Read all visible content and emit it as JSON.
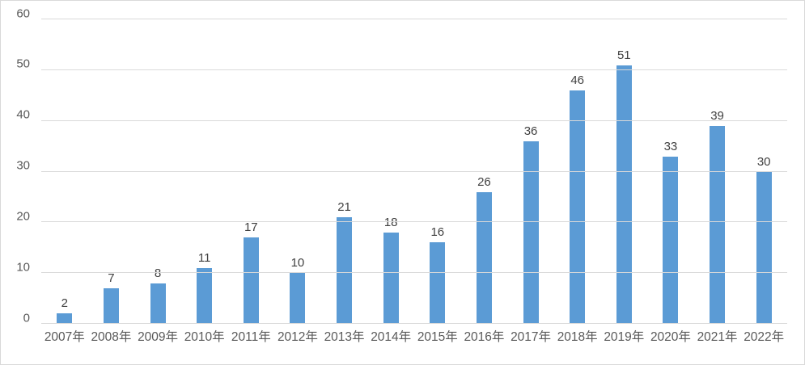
{
  "chart_data": {
    "type": "bar",
    "title": "",
    "xlabel": "",
    "ylabel": "",
    "categories": [
      "2007年",
      "2008年",
      "2009年",
      "2010年",
      "2011年",
      "2012年",
      "2013年",
      "2014年",
      "2015年",
      "2016年",
      "2017年",
      "2018年",
      "2019年",
      "2020年",
      "2021年",
      "2022年"
    ],
    "values": [
      2,
      7,
      8,
      11,
      17,
      10,
      21,
      18,
      16,
      26,
      36,
      46,
      51,
      33,
      39,
      30
    ],
    "ylim": [
      0,
      60
    ],
    "yticks": [
      0,
      10,
      20,
      30,
      40,
      50,
      60
    ],
    "grid": true,
    "legend_position": "none",
    "data_labels_shown": true,
    "colors": {
      "bar": "#5B9BD5",
      "gridline": "#D9D9D9",
      "axis_text": "#595959",
      "data_label_text": "#404040",
      "chart_border": "#D9D9D9",
      "background": "#FFFFFF"
    }
  }
}
